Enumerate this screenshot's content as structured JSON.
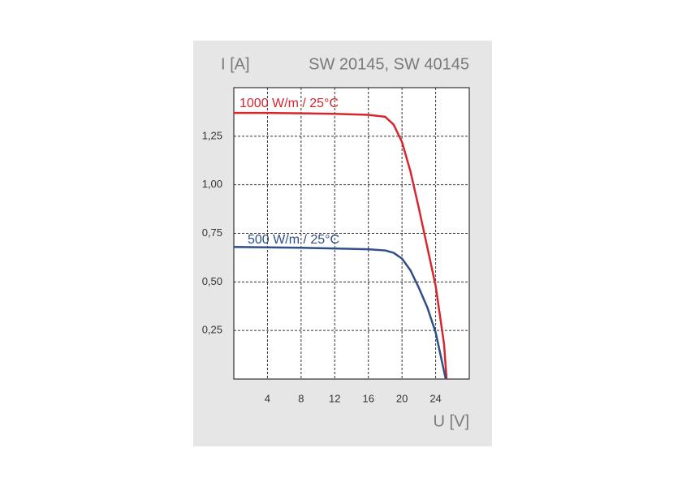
{
  "chart_data": {
    "type": "line",
    "title": "SW 20145, SW 40145",
    "y_label": "I [A]",
    "x_label": "U [V]",
    "xlim": [
      0,
      28
    ],
    "ylim": [
      0,
      1.5
    ],
    "xticks": [
      4,
      8,
      12,
      16,
      20,
      24
    ],
    "yticks": [
      {
        "value": 0.25,
        "label": "0,25"
      },
      {
        "value": 0.5,
        "label": "0,50"
      },
      {
        "value": 0.75,
        "label": "0,75"
      },
      {
        "value": 1.0,
        "label": "1,00"
      },
      {
        "value": 1.25,
        "label": "1,25"
      }
    ],
    "grid": true,
    "series": [
      {
        "name": "1000 W/m  / 25°C",
        "color": "#d7262e",
        "x": [
          0,
          4,
          8,
          12,
          16,
          18,
          19,
          20,
          21,
          22,
          23,
          24,
          25,
          25.3
        ],
        "values": [
          1.37,
          1.37,
          1.368,
          1.365,
          1.36,
          1.35,
          1.31,
          1.22,
          1.07,
          0.88,
          0.68,
          0.48,
          0.18,
          0
        ]
      },
      {
        "name": "500 W/m  / 25°C",
        "color": "#2f4f86",
        "x": [
          0,
          4,
          8,
          12,
          16,
          18,
          19,
          20,
          21,
          22,
          23,
          24,
          25.2
        ],
        "values": [
          0.68,
          0.678,
          0.676,
          0.672,
          0.668,
          0.662,
          0.65,
          0.62,
          0.56,
          0.47,
          0.37,
          0.24,
          0
        ]
      }
    ]
  }
}
